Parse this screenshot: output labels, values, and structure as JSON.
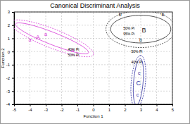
{
  "chart_data": {
    "type": "scatter",
    "title": "Canonical Discriminant Analysis",
    "x_label": "Function 1",
    "y_label": "Function 2",
    "xlim": [
      -5,
      5
    ],
    "xticks": [
      -5,
      -4,
      -3,
      -2,
      -1,
      0,
      1,
      2,
      3,
      4,
      5
    ],
    "ylim": [
      -4,
      3
    ],
    "yticks": [
      -4,
      -3,
      -2,
      -1,
      0,
      1,
      2,
      3
    ],
    "grid": true,
    "series": [
      {
        "name": "a",
        "color": "#d633d6",
        "marker": "letter",
        "x": [
          -3.0,
          -4.0,
          -1.3
        ],
        "values": [
          1.3,
          0.9,
          0.1
        ]
      },
      {
        "name": "b",
        "color": "#222222",
        "marker": "letter",
        "x": [
          1.7,
          4.4,
          3.0
        ],
        "values": [
          2.8,
          2.8,
          0.9
        ]
      },
      {
        "name": "c",
        "color": "#2a2aa0",
        "marker": "letter",
        "x": [
          2.9,
          2.8
        ],
        "values": [
          -1.6,
          -3.3
        ]
      }
    ],
    "centroids": [
      {
        "label": "A",
        "color": "#d633d6",
        "x": -3.5,
        "y": 1.1
      },
      {
        "label": "B",
        "color": "#222222",
        "x": 3.2,
        "y": 1.6
      },
      {
        "label": "C",
        "color": "#2a2aa0",
        "x": 2.85,
        "y": -2.4
      }
    ],
    "ellipses": [
      {
        "color": "#d633d6",
        "line_style": "solid",
        "cx": -2.6,
        "cy": 1.0,
        "major": [
          2.3,
          -1.1
        ],
        "minor": 0.45
      },
      {
        "color": "#d633d6",
        "line_style": "dashed",
        "cx": -2.6,
        "cy": 1.0,
        "major": [
          2.6,
          -1.25
        ],
        "minor": 0.7
      },
      {
        "color": "#222222",
        "line_style": "solid",
        "cx": 3.0,
        "cy": 1.7,
        "major": [
          1.9,
          0
        ],
        "minor": 1.05
      },
      {
        "color": "#222222",
        "line_style": "dashed",
        "cx": 3.0,
        "cy": 1.7,
        "major": [
          2.2,
          0
        ],
        "minor": 1.4
      },
      {
        "color": "#2a2aa0",
        "line_style": "solid",
        "cx": 2.85,
        "cy": -2.3,
        "major": [
          0.12,
          1.75
        ],
        "minor": 0.3
      },
      {
        "color": "#2a2aa0",
        "line_style": "dashed",
        "cx": 2.85,
        "cy": -2.3,
        "major": [
          0.15,
          2.0
        ],
        "minor": 0.45
      }
    ],
    "annotations": [
      {
        "text": "40% Pi",
        "x": -1.6,
        "y": 0.15
      },
      {
        "text": "50% Pi",
        "x": -1.6,
        "y": -0.25
      },
      {
        "text": "50% Pi",
        "x": 1.9,
        "y": 1.75
      },
      {
        "text": "95% Pi",
        "x": 1.9,
        "y": 1.35
      },
      {
        "text": "50% Pi",
        "x": 2.4,
        "y": 0.0
      },
      {
        "text": "40% Pi",
        "x": 2.4,
        "y": -0.8
      }
    ]
  }
}
